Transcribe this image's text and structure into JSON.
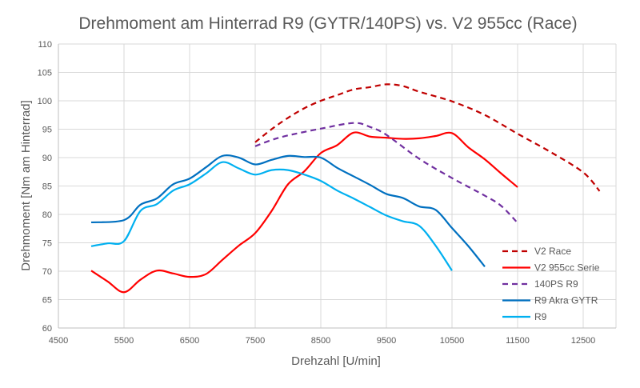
{
  "chart_data": {
    "type": "line",
    "title": "Drehmoment am Hinterrad R9 (GYTR/140PS) vs. V2 955cc (Race)",
    "xlabel": "Drehzahl [U/min]",
    "ylabel": "Drehmoment [Nm am Hinterrad]",
    "xlim": [
      4500,
      13000
    ],
    "ylim": [
      60,
      110
    ],
    "xticks": [
      4500,
      5500,
      6500,
      7500,
      8500,
      9500,
      10500,
      11500,
      12500
    ],
    "yticks": [
      60,
      65,
      70,
      75,
      80,
      85,
      90,
      95,
      100,
      105,
      110
    ],
    "grid": true,
    "legend_position": "bottom-right",
    "series": [
      {
        "name": "V2 Race",
        "color": "#C00000",
        "dash": true,
        "x": [
          7500,
          7750,
          8000,
          8250,
          8500,
          8750,
          9000,
          9250,
          9500,
          9750,
          10000,
          10500,
          11000,
          11500,
          12000,
          12500,
          12750
        ],
        "y": [
          92.7,
          95,
          97,
          98.7,
          100,
          101,
          102,
          102.4,
          102.9,
          102.6,
          101.6,
          99.9,
          97.5,
          94.2,
          91,
          87.4,
          84.1
        ]
      },
      {
        "name": "V2 955cc Serie",
        "color": "#FF0000",
        "dash": false,
        "x": [
          5000,
          5250,
          5500,
          5750,
          6000,
          6250,
          6500,
          6750,
          7000,
          7250,
          7500,
          7750,
          8000,
          8250,
          8500,
          8750,
          9000,
          9250,
          9500,
          9750,
          10000,
          10250,
          10500,
          10750,
          11000,
          11250,
          11500
        ],
        "y": [
          70.1,
          68.2,
          66.3,
          68.5,
          70.1,
          69.6,
          69,
          69.5,
          72,
          74.5,
          76.7,
          80.6,
          85.3,
          87.6,
          90.8,
          92.2,
          94.4,
          93.7,
          93.5,
          93.3,
          93.4,
          93.8,
          94.3,
          91.8,
          89.7,
          87.2,
          84.8
        ]
      },
      {
        "name": "140PS R9",
        "color": "#7030A0",
        "dash": true,
        "x": [
          7500,
          7750,
          8000,
          8500,
          9000,
          9250,
          9500,
          10000,
          10500,
          11000,
          11250,
          11500
        ],
        "y": [
          92,
          93.1,
          93.9,
          95.1,
          96.1,
          95.4,
          94,
          89.8,
          86.4,
          83.3,
          81.5,
          78.5
        ]
      },
      {
        "name": "R9 Akra GYTR",
        "color": "#0070C0",
        "dash": false,
        "x": [
          5000,
          5500,
          5750,
          6000,
          6250,
          6500,
          6750,
          7000,
          7250,
          7500,
          7750,
          8000,
          8250,
          8500,
          8750,
          9000,
          9250,
          9500,
          9750,
          10000,
          10250,
          10500,
          10750,
          11000
        ],
        "y": [
          78.6,
          79,
          81.7,
          82.8,
          85.3,
          86.3,
          88.3,
          90.3,
          90,
          88.8,
          89.6,
          90.3,
          90.1,
          90,
          88.2,
          86.7,
          85.2,
          83.6,
          82.9,
          81.4,
          80.8,
          77.6,
          74.4,
          70.8
        ]
      },
      {
        "name": "R9",
        "color": "#00B0F0",
        "dash": false,
        "x": [
          5000,
          5250,
          5500,
          5750,
          6000,
          6250,
          6500,
          6750,
          7000,
          7250,
          7500,
          7750,
          8000,
          8250,
          8500,
          8750,
          9000,
          9250,
          9500,
          9750,
          10000,
          10250,
          10500
        ],
        "y": [
          74.4,
          74.9,
          75.3,
          80.6,
          81.8,
          84.2,
          85.3,
          87.2,
          89.2,
          88.1,
          87,
          87.8,
          87.8,
          87,
          85.9,
          84.2,
          82.8,
          81.3,
          79.8,
          78.8,
          78,
          74.5,
          70.1
        ]
      }
    ]
  }
}
